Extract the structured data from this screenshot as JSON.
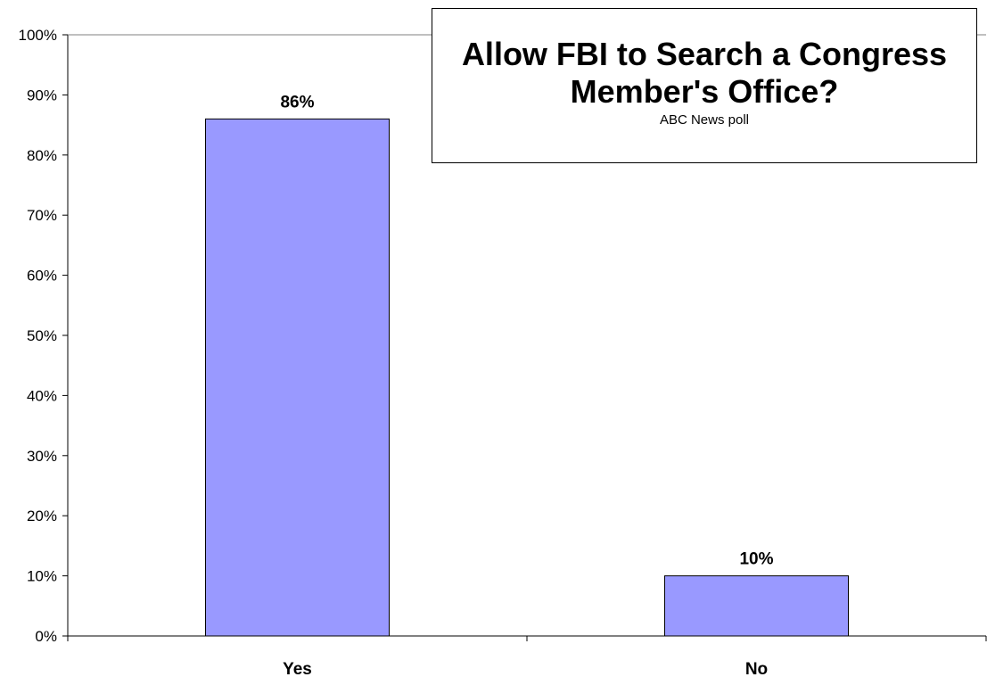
{
  "chart_data": {
    "type": "bar",
    "title": "Allow FBI to Search a Congress Member's Office?",
    "subtitle": "ABC News poll",
    "categories": [
      "Yes",
      "No"
    ],
    "values": [
      86,
      10
    ],
    "value_labels": [
      "86%",
      "10%"
    ],
    "ylim": [
      0,
      100
    ],
    "yticks": [
      0,
      10,
      20,
      30,
      40,
      50,
      60,
      70,
      80,
      90,
      100
    ],
    "ytick_labels": [
      "0%",
      "10%",
      "20%",
      "30%",
      "40%",
      "50%",
      "60%",
      "70%",
      "80%",
      "90%",
      "100%"
    ],
    "xlabel": "",
    "ylabel": "",
    "grid": false,
    "legend": "none",
    "colors": {
      "bar_fill": "#9999ff",
      "bar_stroke": "#000000",
      "axis": "#000000"
    }
  }
}
